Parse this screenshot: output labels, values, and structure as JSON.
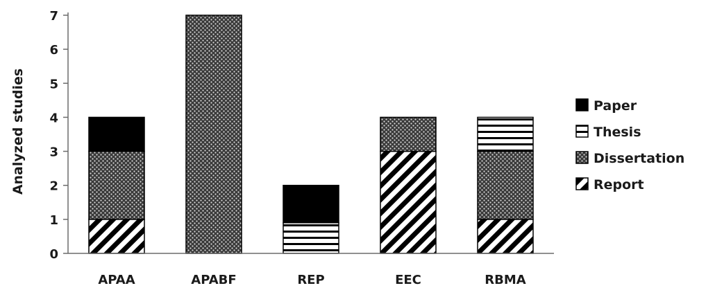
{
  "chart_data": {
    "type": "bar",
    "stacked": true,
    "categories": [
      "APAA",
      "APABF",
      "REP",
      "EEC",
      "RBMA"
    ],
    "series": [
      {
        "name": "Report",
        "values": [
          1,
          0,
          0,
          3,
          1
        ],
        "pattern": "diagonal-hatch"
      },
      {
        "name": "Dissertation",
        "values": [
          2,
          7,
          0,
          1,
          2
        ],
        "pattern": "crosshatch"
      },
      {
        "name": "Thesis",
        "values": [
          0,
          0,
          0.9,
          0,
          1
        ],
        "pattern": "horizontal-lines"
      },
      {
        "name": "Paper",
        "values": [
          1,
          0,
          1.1,
          0,
          0
        ],
        "pattern": "solid",
        "color": "#000000"
      }
    ],
    "legend_order": [
      "Paper",
      "Thesis",
      "Dissertation",
      "Report"
    ],
    "ylabel": "Analyzed  studies",
    "xlabel": "",
    "ylim": [
      0,
      7
    ],
    "yticks": [
      0,
      1,
      2,
      3,
      4,
      5,
      6,
      7
    ],
    "grid": false,
    "legend_position": "right"
  }
}
